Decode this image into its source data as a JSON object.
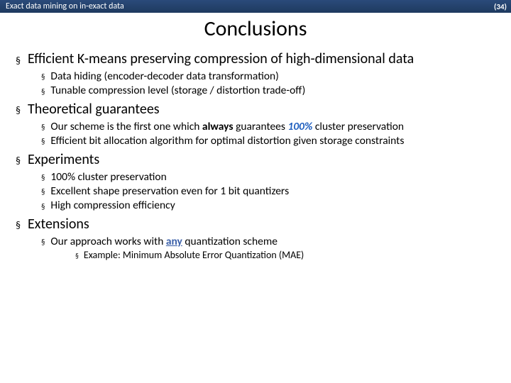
{
  "header": {
    "text": "Exact data mining on in-exact data",
    "slide_number": "(34)",
    "bar_gradient_top": "#2a4a7a",
    "bar_gradient_bottom": "#1e3a5f",
    "text_color": "#ffffff"
  },
  "title": {
    "text": "Conclusions",
    "fontsize": 30,
    "color": "#000000"
  },
  "colors": {
    "background": "#ffffff",
    "bullet": "#000000",
    "text": "#000000",
    "highlight_100pct": "#1f5fbf",
    "highlight_any": "#3a5fa8"
  },
  "font_family": "Calibri, Segoe UI, Arial, sans-serif",
  "bullets": {
    "l1": [
      {
        "text": "Efficient K-means preserving compression of high-dimensional data",
        "sub": [
          {
            "text": "Data hiding (encoder-decoder data transformation)"
          },
          {
            "text": "Tunable compression level (storage / distortion trade-off)"
          }
        ]
      },
      {
        "text": "Theoretical guarantees",
        "sub": [
          {
            "pre": "Our scheme is the first one which ",
            "always": "always",
            "mid": " guarantees ",
            "pct": "100%",
            "post": " cluster preservation"
          },
          {
            "text": "Efficient bit allocation algorithm for optimal distortion given storage constraints"
          }
        ]
      },
      {
        "text": "Experiments",
        "sub": [
          {
            "text": "100% cluster preservation"
          },
          {
            "text": "Excellent shape preservation even for 1 bit quantizers"
          },
          {
            "text": "High compression efficiency"
          }
        ]
      },
      {
        "text": "Extensions",
        "sub": [
          {
            "pre": "Our approach works with ",
            "any": "any",
            "post": " quantization scheme",
            "sub3": [
              {
                "text": "Example: Minimum Absolute Error Quantization (MAE)"
              }
            ]
          }
        ]
      }
    ]
  },
  "styling": {
    "l1_fontsize": 20,
    "l2_fontsize": 15.5,
    "l3_fontsize": 14,
    "l1_indent": 6,
    "l2_indent": 42,
    "l3_indent": 90,
    "bullet_char": "§",
    "bullet_scale": 0.7
  }
}
